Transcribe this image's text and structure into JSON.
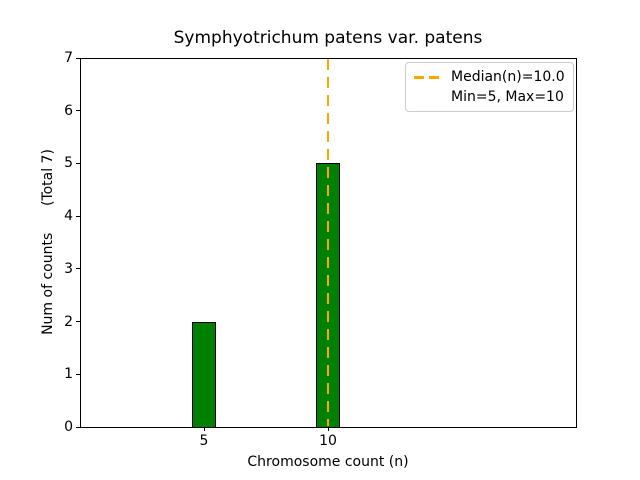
{
  "chart_data": {
    "type": "bar",
    "title": "Symphyotrichum patens var. patens",
    "xlabel": "Chromosome count (n)",
    "ylabel": "Num of counts      (Total 7)",
    "x": [
      5,
      10
    ],
    "values": [
      2,
      5
    ],
    "total_counts": 7,
    "xlim": [
      0,
      20
    ],
    "ylim": [
      0,
      7
    ],
    "xticks": [
      5,
      10
    ],
    "yticks": [
      0,
      1,
      2,
      3,
      4,
      5,
      6,
      7
    ],
    "bar_width_units": 1.0,
    "bar_color": "#008000",
    "bar_edge_color": "#000000",
    "grid": false,
    "median_line": {
      "x": 10,
      "color": "#FFA500",
      "style": "dashed"
    },
    "legend": {
      "position": "upper right",
      "entries": [
        {
          "label": "Median(n)=10.0",
          "handle": "orange-dashed-line"
        },
        {
          "label": "Min=5, Max=10",
          "handle": "none"
        }
      ]
    }
  }
}
